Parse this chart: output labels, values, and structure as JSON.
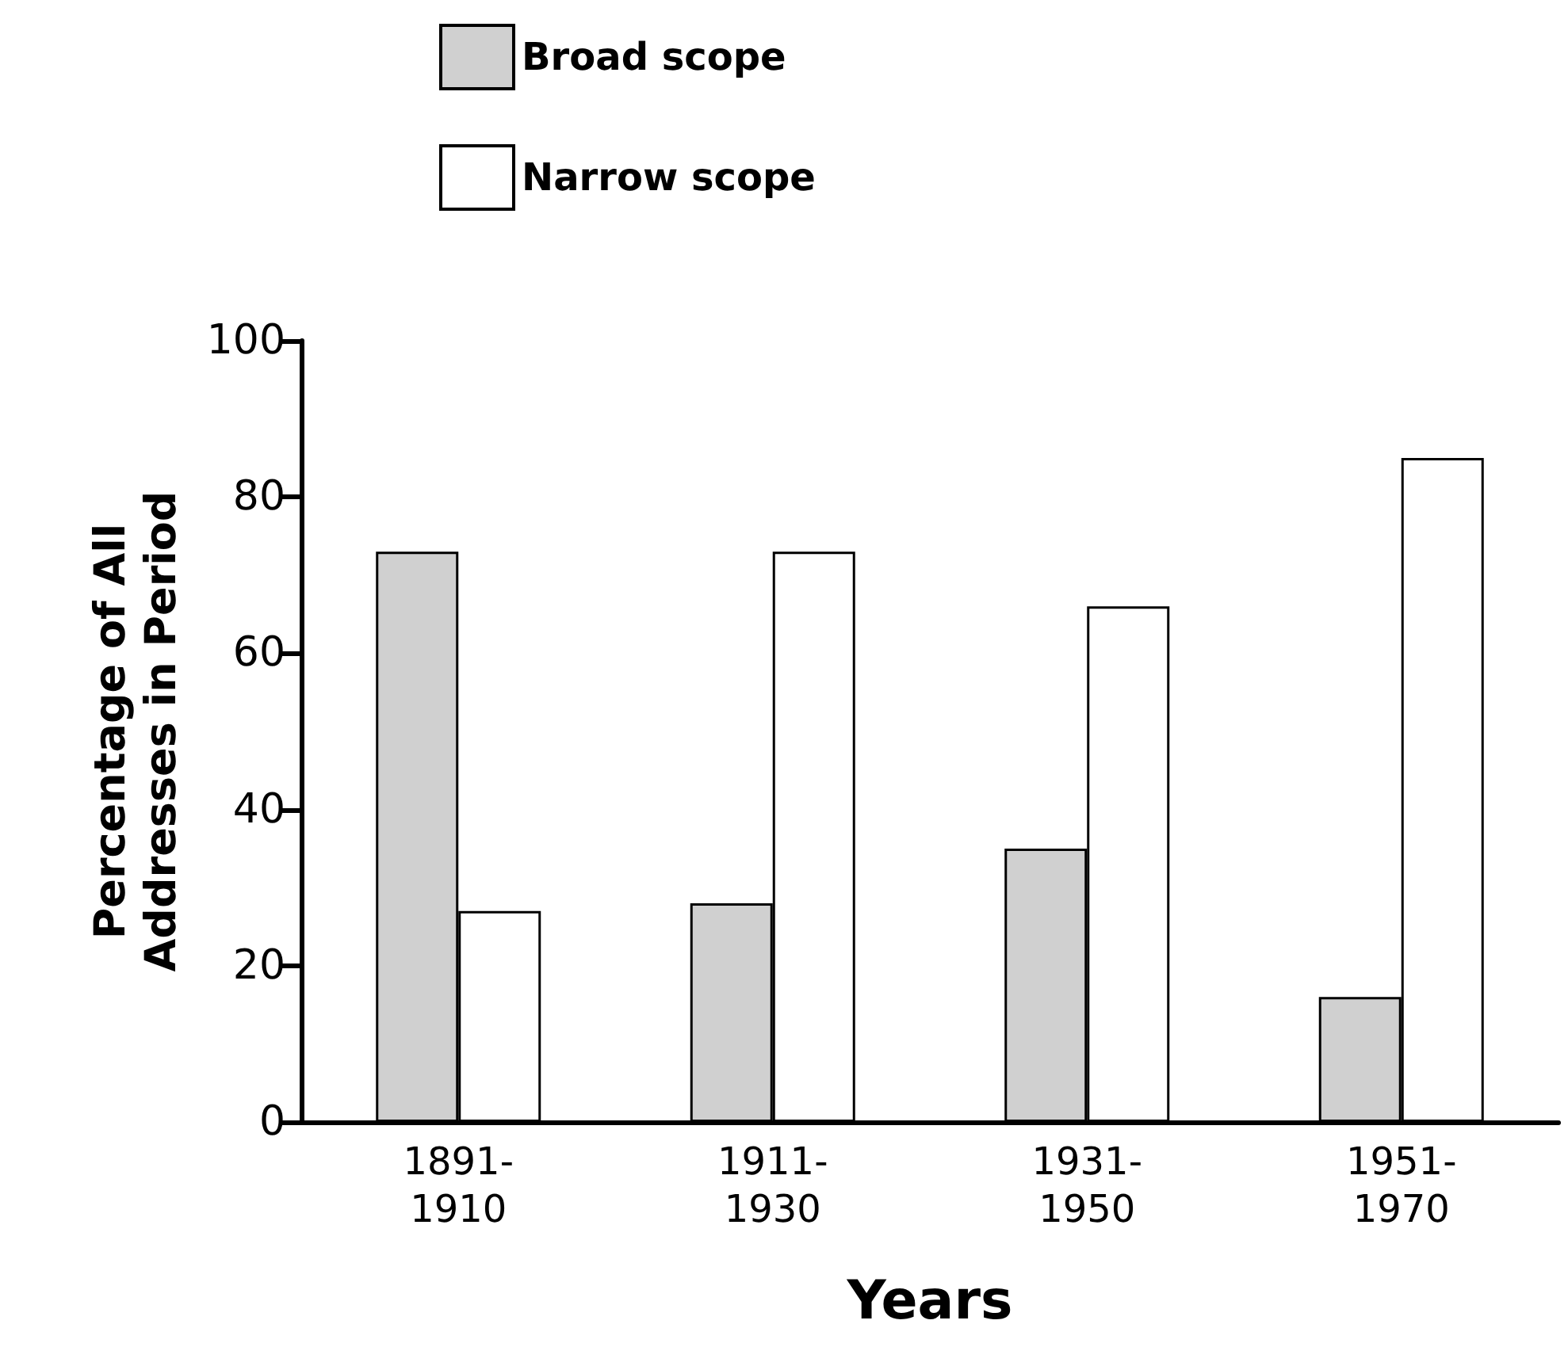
{
  "chart_data": {
    "type": "bar",
    "xlabel": "Years",
    "ylabel": "Percentage of All\nAddresses in Period",
    "categories": [
      "1891-\n1910",
      "1911-\n1930",
      "1931-\n1950",
      "1951-\n1970"
    ],
    "series": [
      {
        "name": "Broad scope",
        "color": "#d0d0d0",
        "values": [
          73,
          28,
          35,
          16
        ]
      },
      {
        "name": "Narrow scope",
        "color": "#ffffff",
        "values": [
          27,
          73,
          66,
          85
        ]
      }
    ],
    "ylim": [
      0,
      100
    ],
    "yticks": [
      0,
      20,
      40,
      60,
      80,
      100
    ],
    "grid": false,
    "legend": "top left"
  }
}
